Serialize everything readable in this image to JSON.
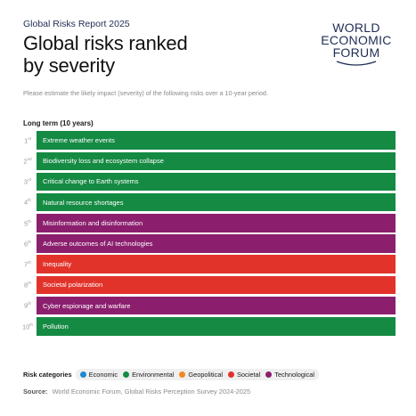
{
  "header": {
    "report_label": "Global Risks Report 2025",
    "title_line1": "Global risks ranked",
    "title_line2": "by severity"
  },
  "logo": {
    "line1": "WORLD",
    "line2": "ECONOMIC",
    "line3": "FORUM"
  },
  "question": "Please estimate the likely impact (severity) of the following risks over a 10-year period.",
  "section_label": "Long term (10 years)",
  "risks": [
    {
      "rank": "1",
      "suffix": "st",
      "label": "Extreme weather events",
      "category": "environmental"
    },
    {
      "rank": "2",
      "suffix": "nd",
      "label": "Biodiversity loss and ecosystem collapse",
      "category": "environmental"
    },
    {
      "rank": "3",
      "suffix": "rd",
      "label": "Critical change to Earth systems",
      "category": "environmental"
    },
    {
      "rank": "4",
      "suffix": "th",
      "label": "Natural resource shortages",
      "category": "environmental"
    },
    {
      "rank": "5",
      "suffix": "th",
      "label": "Misinformation and disinformation",
      "category": "technological"
    },
    {
      "rank": "6",
      "suffix": "th",
      "label": "Adverse outcomes of AI technologies",
      "category": "technological"
    },
    {
      "rank": "7",
      "suffix": "th",
      "label": "Inequality",
      "category": "societal"
    },
    {
      "rank": "8",
      "suffix": "th",
      "label": "Societal polarization",
      "category": "societal"
    },
    {
      "rank": "9",
      "suffix": "th",
      "label": "Cyber espionage and warfare",
      "category": "technological"
    },
    {
      "rank": "10",
      "suffix": "th",
      "label": "Pollution",
      "category": "environmental"
    }
  ],
  "legend": {
    "title": "Risk categories",
    "items": [
      {
        "label": "Economic",
        "color": "#1e88d0"
      },
      {
        "label": "Environmental",
        "color": "#158a43"
      },
      {
        "label": "Geopolitical",
        "color": "#ef8a1f"
      },
      {
        "label": "Societal",
        "color": "#e2332b"
      },
      {
        "label": "Technological",
        "color": "#8b1f6e"
      }
    ]
  },
  "source": {
    "label": "Source:",
    "text": "World Economic Forum, Global Risks Perception Survey 2024-2025"
  }
}
